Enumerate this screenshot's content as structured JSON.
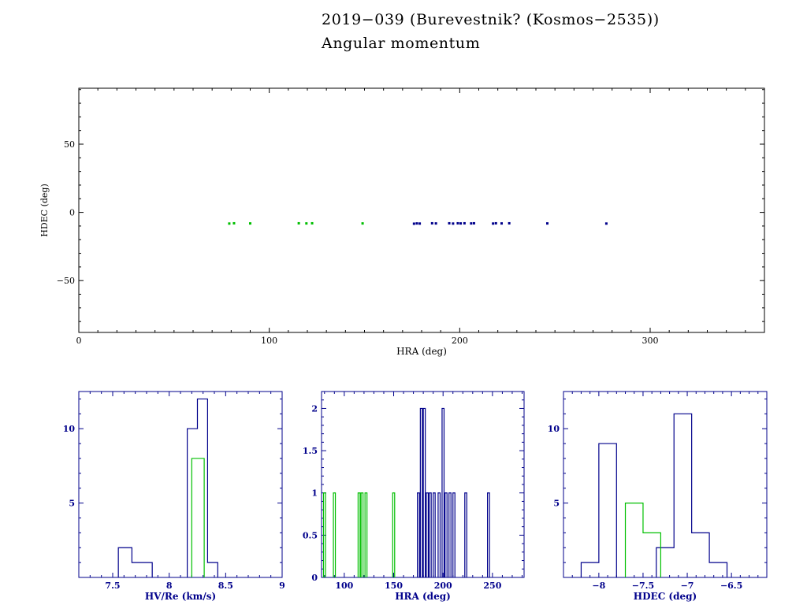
{
  "title": {
    "line1": "2019−039 (Burevestnik? (Kosmos−2535))",
    "line2": "Angular momentum"
  },
  "colors": {
    "background": "#ffffff",
    "black": "#000000",
    "navy": "#00008b",
    "green": "#00bf00"
  },
  "chart_data": [
    {
      "id": "scatter",
      "type": "scatter",
      "xlabel": "HRA (deg)",
      "ylabel": "HDEC (deg)",
      "xlim": [
        0,
        360
      ],
      "ylim": [
        -88,
        91
      ],
      "xticks": [
        0,
        100,
        200,
        300
      ],
      "yticks": [
        -50,
        0,
        50
      ],
      "xminor": 10,
      "yminor": 10,
      "axis": "black",
      "series": [
        {
          "name": "green-points",
          "color": "green",
          "points": [
            [
              79,
              -8.2
            ],
            [
              81.5,
              -8.0
            ],
            [
              90,
              -8.1
            ],
            [
              115.5,
              -8.0
            ],
            [
              119.5,
              -8.1
            ],
            [
              122.5,
              -8.0
            ],
            [
              149,
              -8.1
            ]
          ]
        },
        {
          "name": "blue-points",
          "color": "navy",
          "points": [
            [
              176,
              -8.3
            ],
            [
              177.5,
              -8.1
            ],
            [
              179,
              -8.2
            ],
            [
              185.5,
              -8.0
            ],
            [
              187.5,
              -8.1
            ],
            [
              194.5,
              -8.0
            ],
            [
              196.5,
              -8.2
            ],
            [
              199,
              -8.0
            ],
            [
              200.5,
              -8.1
            ],
            [
              202.5,
              -8.0
            ],
            [
              206,
              -8.1
            ],
            [
              207.5,
              -8.0
            ],
            [
              217.5,
              -8.2
            ],
            [
              219,
              -8.0
            ],
            [
              222,
              -8.1
            ],
            [
              226,
              -8.0
            ],
            [
              246,
              -8.1
            ],
            [
              277,
              -8.2
            ]
          ]
        }
      ]
    },
    {
      "id": "hist_hv",
      "type": "histogram",
      "xlabel": "HV/Re (km/s)",
      "xlim": [
        7.2,
        9.0
      ],
      "ylim": [
        0,
        12.5
      ],
      "xticks": [
        7.5,
        8,
        8.5,
        9
      ],
      "yticks": [
        5,
        10
      ],
      "xminor": 0.1,
      "yminor": 1,
      "axis": "navy",
      "series": [
        {
          "name": "blue-hist",
          "color": "navy",
          "bins": [
            {
              "x0": 7.55,
              "x1": 7.67,
              "y": 2
            },
            {
              "x0": 7.67,
              "x1": 7.85,
              "y": 1
            },
            {
              "x0": 8.16,
              "x1": 8.25,
              "y": 10
            },
            {
              "x0": 8.25,
              "x1": 8.34,
              "y": 12
            },
            {
              "x0": 8.34,
              "x1": 8.43,
              "y": 1
            }
          ]
        },
        {
          "name": "green-hist",
          "color": "green",
          "bins": [
            {
              "x0": 8.2,
              "x1": 8.31,
              "y": 8
            }
          ]
        }
      ]
    },
    {
      "id": "hist_hra",
      "type": "histogram",
      "xlabel": "HRA (deg)",
      "xlim": [
        77,
        282
      ],
      "ylim": [
        0,
        2.2
      ],
      "xticks": [
        100,
        150,
        200,
        250
      ],
      "yticks": [
        0,
        0.5,
        1,
        1.5,
        2
      ],
      "xminor": 10,
      "yminor": 0.1,
      "axis": "navy",
      "series": [
        {
          "name": "blue-hist",
          "color": "navy",
          "bins": [
            {
              "x0": 174,
              "x1": 176,
              "y": 1
            },
            {
              "x0": 177,
              "x1": 179,
              "y": 2
            },
            {
              "x0": 180,
              "x1": 182,
              "y": 2
            },
            {
              "x0": 183,
              "x1": 185,
              "y": 1
            },
            {
              "x0": 186,
              "x1": 188,
              "y": 1
            },
            {
              "x0": 190,
              "x1": 192,
              "y": 1
            },
            {
              "x0": 195,
              "x1": 197,
              "y": 1
            },
            {
              "x0": 199,
              "x1": 201,
              "y": 2
            },
            {
              "x0": 202,
              "x1": 204,
              "y": 1
            },
            {
              "x0": 206,
              "x1": 208,
              "y": 1
            },
            {
              "x0": 210,
              "x1": 212,
              "y": 1
            },
            {
              "x0": 222,
              "x1": 224,
              "y": 1
            },
            {
              "x0": 245,
              "x1": 247,
              "y": 1
            }
          ]
        },
        {
          "name": "green-hist",
          "color": "green",
          "bins": [
            {
              "x0": 79,
              "x1": 81,
              "y": 1
            },
            {
              "x0": 89,
              "x1": 91,
              "y": 1
            },
            {
              "x0": 114,
              "x1": 116,
              "y": 1
            },
            {
              "x0": 117,
              "x1": 119,
              "y": 1
            },
            {
              "x0": 121,
              "x1": 123,
              "y": 1
            },
            {
              "x0": 149,
              "x1": 151,
              "y": 1
            }
          ]
        }
      ]
    },
    {
      "id": "hist_hdec",
      "type": "histogram",
      "xlabel": "HDEC (deg)",
      "xlim": [
        -8.4,
        -6.1
      ],
      "ylim": [
        0,
        12.5
      ],
      "xticks": [
        -8,
        -7.5,
        -7,
        -6.5
      ],
      "yticks": [
        5,
        10
      ],
      "xminor": 0.1,
      "yminor": 1,
      "axis": "navy",
      "series": [
        {
          "name": "blue-hist",
          "color": "navy",
          "bins": [
            {
              "x0": -8.2,
              "x1": -8.0,
              "y": 1
            },
            {
              "x0": -8.0,
              "x1": -7.8,
              "y": 9
            },
            {
              "x0": -7.35,
              "x1": -7.15,
              "y": 2
            },
            {
              "x0": -7.15,
              "x1": -6.95,
              "y": 11
            },
            {
              "x0": -6.95,
              "x1": -6.75,
              "y": 3
            },
            {
              "x0": -6.75,
              "x1": -6.55,
              "y": 1
            }
          ]
        },
        {
          "name": "green-hist",
          "color": "green",
          "bins": [
            {
              "x0": -7.7,
              "x1": -7.5,
              "y": 5
            },
            {
              "x0": -7.5,
              "x1": -7.3,
              "y": 3
            }
          ]
        }
      ]
    }
  ]
}
